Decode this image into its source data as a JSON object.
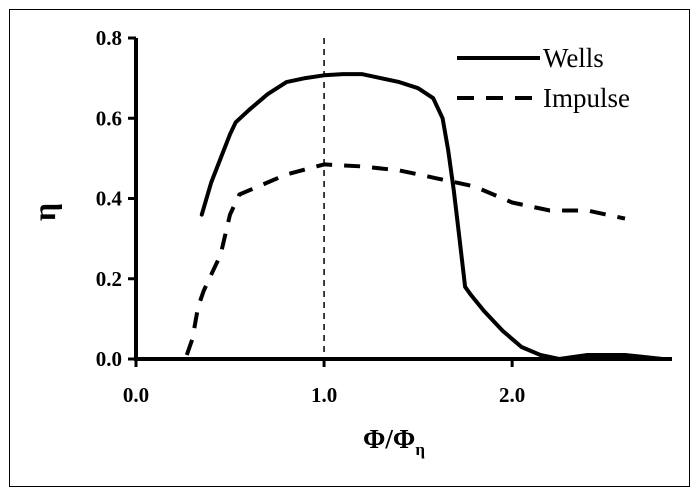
{
  "chart_data": {
    "type": "line",
    "title": "",
    "xlabel": "Φ/Φ",
    "xlabel_subscript": "η",
    "ylabel": "η",
    "xlim": [
      0.0,
      2.85
    ],
    "ylim": [
      0.0,
      0.8
    ],
    "x_ticks": [
      "0.0",
      "1.0",
      "2.0"
    ],
    "y_ticks": [
      "0.0",
      "0.2",
      "0.4",
      "0.6",
      "0.8"
    ],
    "x_tick_values": [
      0.0,
      1.0,
      2.0
    ],
    "y_tick_values": [
      0.0,
      0.2,
      0.4,
      0.6,
      0.8
    ],
    "grid": false,
    "reference_line_x": 1.0,
    "legend_position": "top-right",
    "series": [
      {
        "name": "Wells",
        "style": "solid",
        "x": [
          0.35,
          0.4,
          0.45,
          0.5,
          0.53,
          0.6,
          0.7,
          0.8,
          0.9,
          1.0,
          1.1,
          1.2,
          1.3,
          1.4,
          1.5,
          1.58,
          1.63,
          1.66,
          1.69,
          1.72,
          1.75,
          1.78,
          1.85,
          1.95,
          2.05,
          2.15,
          2.25,
          2.4,
          2.6,
          2.8
        ],
        "y": [
          0.36,
          0.44,
          0.5,
          0.56,
          0.59,
          0.62,
          0.66,
          0.69,
          0.7,
          0.707,
          0.71,
          0.71,
          0.7,
          0.69,
          0.675,
          0.65,
          0.6,
          0.52,
          0.42,
          0.3,
          0.18,
          0.16,
          0.12,
          0.07,
          0.03,
          0.01,
          0.0,
          0.01,
          0.01,
          0.0
        ]
      },
      {
        "name": "Impulse",
        "style": "dashed",
        "x": [
          0.27,
          0.3,
          0.33,
          0.36,
          0.4,
          0.45,
          0.5,
          0.55,
          0.65,
          0.8,
          1.0,
          1.2,
          1.4,
          1.6,
          1.8,
          2.0,
          2.2,
          2.4,
          2.6
        ],
        "y": [
          0.01,
          0.05,
          0.13,
          0.17,
          0.21,
          0.26,
          0.36,
          0.41,
          0.43,
          0.46,
          0.485,
          0.48,
          0.47,
          0.45,
          0.43,
          0.39,
          0.37,
          0.37,
          0.35
        ]
      }
    ]
  }
}
